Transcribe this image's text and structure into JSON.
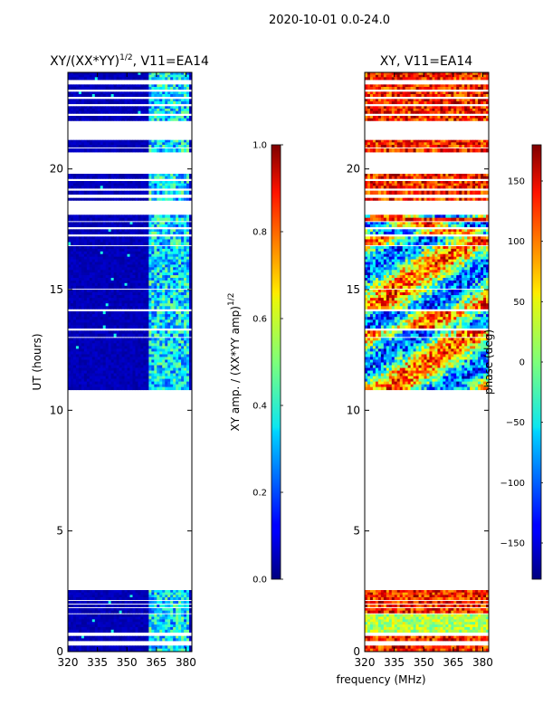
{
  "chart_data": {
    "suptitle": "2020-10-01 0.0-24.0",
    "shared_xlabel": "frequency (MHz)",
    "panels": [
      {
        "type": "heatmap",
        "title_text": "XY/(XX*YY)",
        "title_sup": "1/2",
        "title_rest": ", V11=EA14",
        "ylabel": "UT (hours)",
        "xlim": [
          320,
          383
        ],
        "ylim": [
          0,
          24
        ],
        "xticks": [
          "320",
          "335",
          "350",
          "365",
          "380"
        ],
        "yticks": [
          "0",
          "5",
          "10",
          "15",
          "20"
        ],
        "data_rows_hours": [
          [
            0.0,
            0.25
          ],
          [
            0.45,
            0.65
          ],
          [
            0.8,
            1.55
          ],
          [
            1.6,
            1.8
          ],
          [
            1.85,
            1.95
          ],
          [
            2.0,
            2.1
          ],
          [
            2.15,
            2.55
          ],
          [
            10.85,
            13.0
          ],
          [
            13.05,
            13.3
          ],
          [
            13.4,
            14.1
          ],
          [
            14.2,
            15.0
          ],
          [
            15.05,
            16.8
          ],
          [
            16.85,
            17.2
          ],
          [
            17.3,
            17.5
          ],
          [
            17.6,
            17.8
          ],
          [
            17.85,
            18.1
          ],
          [
            18.7,
            18.8
          ],
          [
            18.95,
            19.1
          ],
          [
            19.2,
            19.5
          ],
          [
            19.6,
            19.8
          ],
          [
            20.7,
            20.85
          ],
          [
            20.9,
            21.2
          ],
          [
            22.0,
            22.2
          ],
          [
            22.3,
            22.6
          ],
          [
            22.7,
            22.9
          ],
          [
            23.0,
            23.2
          ],
          [
            23.3,
            23.5
          ],
          [
            23.7,
            24.0
          ]
        ]
      },
      {
        "type": "heatmap",
        "title_text": "XY, V11=EA14",
        "xlim": [
          320,
          383
        ],
        "ylim": [
          0,
          24
        ],
        "xticks": [
          "320",
          "335",
          "350",
          "365",
          "380"
        ],
        "yticks": [
          "0",
          "5",
          "10",
          "15",
          "20"
        ],
        "data_rows_hours": [
          [
            0.0,
            0.25
          ],
          [
            0.45,
            0.65
          ],
          [
            0.8,
            1.55
          ],
          [
            1.6,
            1.8
          ],
          [
            1.85,
            1.95
          ],
          [
            2.0,
            2.1
          ],
          [
            2.15,
            2.55
          ],
          [
            10.85,
            13.0
          ],
          [
            13.05,
            13.3
          ],
          [
            13.4,
            14.1
          ],
          [
            14.2,
            15.0
          ],
          [
            15.05,
            16.8
          ],
          [
            16.85,
            17.2
          ],
          [
            17.3,
            17.5
          ],
          [
            17.6,
            17.8
          ],
          [
            17.85,
            18.1
          ],
          [
            18.7,
            18.8
          ],
          [
            18.95,
            19.1
          ],
          [
            19.2,
            19.5
          ],
          [
            19.6,
            19.8
          ],
          [
            20.7,
            20.85
          ],
          [
            20.9,
            21.2
          ],
          [
            22.0,
            22.2
          ],
          [
            22.3,
            22.6
          ],
          [
            22.7,
            22.9
          ],
          [
            23.0,
            23.2
          ],
          [
            23.3,
            23.5
          ],
          [
            23.7,
            24.0
          ]
        ]
      }
    ],
    "colorbars": [
      {
        "label_text": "XY amp. / (XX*YY amp)",
        "label_sup": "1/2",
        "range": [
          0.0,
          1.0
        ],
        "ticks": [
          "0.0",
          "0.2",
          "0.4",
          "0.6",
          "0.8",
          "1.0"
        ]
      },
      {
        "label_text": "phase (deg)",
        "range": [
          -180,
          180
        ],
        "ticks": [
          "-150",
          "-100",
          "-50",
          "0",
          "50",
          "100",
          "150"
        ]
      }
    ]
  }
}
